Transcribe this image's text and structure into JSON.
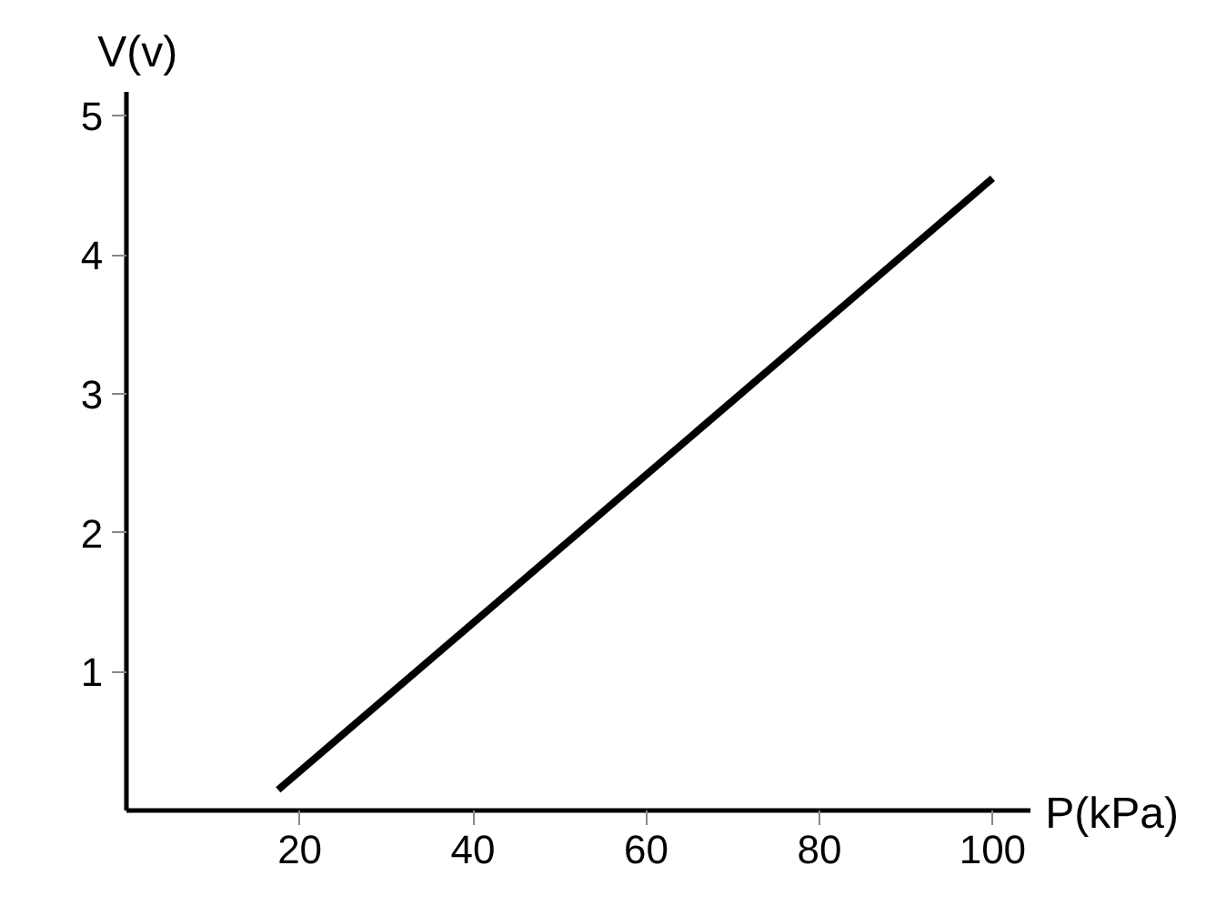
{
  "chart_data": {
    "type": "line",
    "xlabel": "P(kPa)",
    "ylabel": "V(v)",
    "x": [
      17.5,
      100
    ],
    "series": [
      {
        "color": "#000000",
        "values": [
          0.15,
          4.55
        ]
      }
    ],
    "xlim": [
      0,
      104.4
    ],
    "ylim": [
      0,
      5.17
    ],
    "xticks": [
      20,
      40,
      60,
      80,
      100
    ],
    "yticks": [
      1,
      2,
      3,
      4,
      5
    ],
    "grid": false,
    "marker": "none",
    "line_style": "solid"
  }
}
